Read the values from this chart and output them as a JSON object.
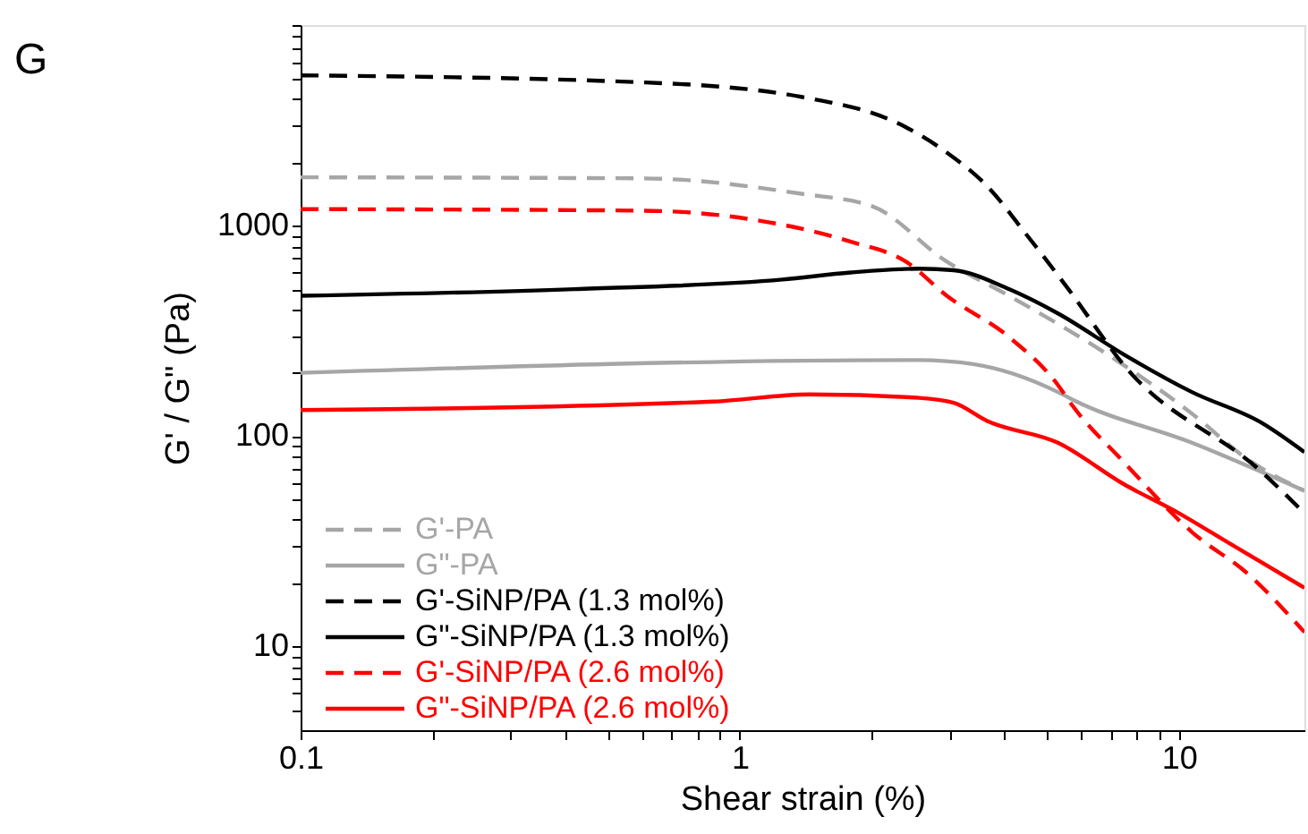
{
  "chart_data": {
    "type": "line",
    "xlabel": "Shear strain (%)",
    "ylabel": "G' / G\" (Pa)",
    "annotations": [
      "G"
    ],
    "log": "xy",
    "grid": false,
    "legend": "bottom left",
    "xlim": [
      0.1,
      19.3
    ],
    "ylim": [
      4,
      9000
    ],
    "xticks": [
      0.1,
      {
        "value": 0.2,
        "label": null
      },
      {
        "value": 0.3,
        "label": null
      },
      {
        "value": 0.4,
        "label": null
      },
      {
        "value": 0.5,
        "label": null
      },
      {
        "value": 0.6,
        "label": null
      },
      {
        "value": 0.7,
        "label": null
      },
      {
        "value": 0.8,
        "label": null
      },
      {
        "value": 0.9,
        "label": null
      },
      1,
      {
        "value": 2,
        "label": null
      },
      {
        "value": 3,
        "label": null
      },
      {
        "value": 4,
        "label": null
      },
      {
        "value": 5,
        "label": null
      },
      {
        "value": 6,
        "label": null
      },
      {
        "value": 7,
        "label": null
      },
      {
        "value": 8,
        "label": null
      },
      {
        "value": 9,
        "label": null
      },
      10
    ],
    "yticks": [
      {
        "value": 5,
        "label": null
      },
      {
        "value": 6,
        "label": null
      },
      {
        "value": 7,
        "label": null
      },
      {
        "value": 8,
        "label": null
      },
      {
        "value": 9,
        "label": null
      },
      10,
      {
        "value": 20,
        "label": null
      },
      {
        "value": 30,
        "label": null
      },
      {
        "value": 40,
        "label": null
      },
      {
        "value": 50,
        "label": null
      },
      {
        "value": 60,
        "label": null
      },
      {
        "value": 70,
        "label": null
      },
      {
        "value": 80,
        "label": null
      },
      {
        "value": 90,
        "label": null
      },
      100,
      {
        "value": 200,
        "label": null
      },
      {
        "value": 300,
        "label": null
      },
      {
        "value": 400,
        "label": null
      },
      {
        "value": 500,
        "label": null
      },
      {
        "value": 600,
        "label": null
      },
      {
        "value": 700,
        "label": null
      },
      {
        "value": 800,
        "label": null
      },
      {
        "value": 900,
        "label": null
      },
      1000,
      {
        "value": 2000,
        "label": null
      },
      {
        "value": 3000,
        "label": null
      },
      {
        "value": 4000,
        "label": null
      },
      {
        "value": 5000,
        "label": null
      },
      {
        "value": 6000,
        "label": null
      },
      {
        "value": 7000,
        "label": null
      },
      {
        "value": 8000,
        "label": null
      },
      {
        "value": 9000,
        "label": null
      }
    ],
    "series": [
      {
        "name": "G'-PA",
        "color": "#a6a6a6",
        "line_style": "dashed",
        "x": [
          0.1,
          0.6,
          1.38,
          2.0,
          2.96,
          4.1,
          7.5,
          10.7,
          14.4,
          19.3
        ],
        "values": [
          1700,
          1680,
          1420,
          1240,
          675,
          465,
          217,
          128,
          77,
          55
        ]
      },
      {
        "name": "G\"-PA",
        "color": "#a6a6a6",
        "line_style": "solid",
        "x": [
          0.1,
          2.56,
          3.4,
          5.3,
          5.8,
          10.7,
          19.3
        ],
        "values": [
          200,
          230,
          220,
          162,
          147,
          93,
          55
        ]
      },
      {
        "name": "G'-SiNP/PA (1.3 mol%)",
        "color": "#000000",
        "line_style": "dashed",
        "x": [
          0.1,
          0.61,
          1.38,
          2.39,
          2.96,
          3.66,
          4.5,
          5.6,
          7.5,
          15.5,
          19.3
        ],
        "values": [
          5190,
          4800,
          4100,
          2940,
          2230,
          1540,
          905,
          500,
          217,
          67,
          43
        ]
      },
      {
        "name": "G\"-SiNP/PA (1.3 mol%)",
        "color": "#000000",
        "line_style": "solid",
        "x": [
          0.1,
          0.42,
          1.25,
          1.79,
          2.56,
          3.07,
          4.1,
          5.3,
          7.5,
          10.7,
          15.5,
          19.3
        ],
        "values": [
          465,
          500,
          555,
          600,
          625,
          615,
          500,
          383,
          244,
          162,
          115,
          84
        ]
      },
      {
        "name": "G'-SiNP/PA (2.6 mol%)",
        "color": "#ff0000",
        "line_style": "dashed",
        "x": [
          0.1,
          0.6,
          1.04,
          1.79,
          2.39,
          2.96,
          4.1,
          5.3,
          5.7,
          7.5,
          10.7,
          14.4,
          19.3
        ],
        "values": [
          1200,
          1180,
          1080,
          840,
          675,
          465,
          296,
          175,
          141,
          75,
          35,
          22,
          11.7
        ]
      },
      {
        "name": "G\"-SiNP/PA (2.6 mol%)",
        "color": "#ff0000",
        "line_style": "solid",
        "x": [
          0.1,
          0.87,
          1.44,
          2.56,
          3.07,
          3.66,
          5.3,
          7.5,
          10,
          13.0,
          19.3
        ],
        "values": [
          133,
          146,
          158,
          152,
          144,
          118,
          93,
          59,
          43,
          31,
          19
        ]
      }
    ]
  }
}
